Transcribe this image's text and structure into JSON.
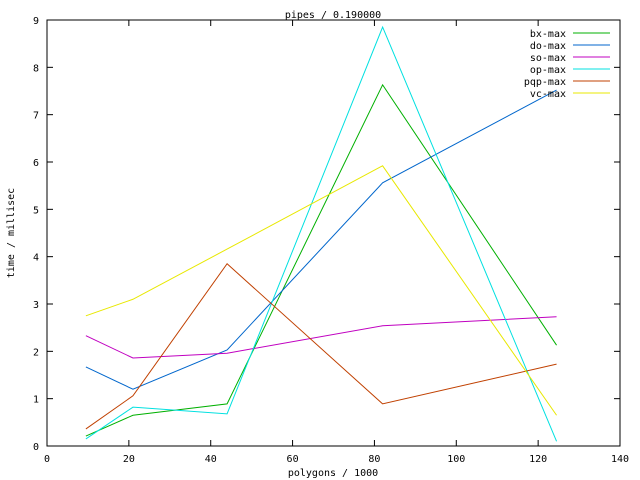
{
  "chart_data": {
    "type": "line",
    "title": "pipes / 0.190000",
    "x_label": "polygons / 1000",
    "y_label": "time / millisec",
    "x": [
      9.5,
      21,
      44,
      82,
      124.5
    ],
    "series": [
      {
        "name": "bx-max",
        "color": "#00b000",
        "values": [
          0.21,
          0.65,
          0.89,
          7.63,
          2.13
        ]
      },
      {
        "name": "do-max",
        "color": "#0066cc",
        "values": [
          1.67,
          1.2,
          2.03,
          5.56,
          7.52
        ]
      },
      {
        "name": "so-max",
        "color": "#c000c0",
        "values": [
          2.33,
          1.86,
          1.96,
          2.54,
          2.73
        ]
      },
      {
        "name": "op-max",
        "color": "#00e0e0",
        "values": [
          0.15,
          0.82,
          0.68,
          8.85,
          0.1
        ]
      },
      {
        "name": "pqp-max",
        "color": "#c04000",
        "values": [
          0.36,
          1.06,
          3.85,
          0.89,
          1.73
        ]
      },
      {
        "name": "vc-max",
        "color": "#e8e800",
        "values": [
          2.75,
          3.1,
          4.16,
          5.92,
          0.65
        ]
      }
    ],
    "xlim": [
      0,
      140
    ],
    "xticks": [
      0,
      20,
      40,
      60,
      80,
      100,
      120,
      140
    ],
    "ylim": [
      0,
      9
    ],
    "yticks": [
      0,
      1,
      2,
      3,
      4,
      5,
      6,
      7,
      8,
      9
    ],
    "legend": "top-right"
  }
}
